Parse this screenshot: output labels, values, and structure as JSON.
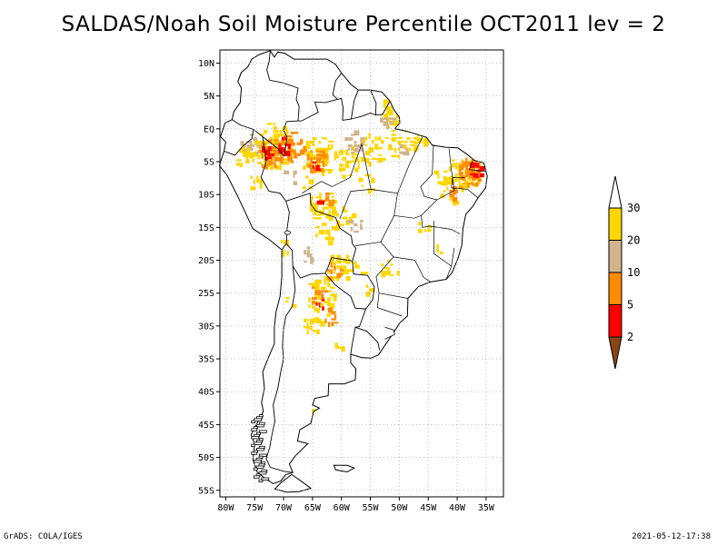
{
  "title": "SALDAS/Noah Soil Moisture Percentile OCT2011 lev = 2",
  "footer": {
    "left": "GrADS: COLA/IGES",
    "right": "2021-05-12-17:38"
  },
  "map": {
    "lon_range": [
      -81,
      -32
    ],
    "lat_range": [
      -56,
      12
    ],
    "lon_ticks": [
      {
        "v": -80,
        "label": "80W"
      },
      {
        "v": -75,
        "label": "75W"
      },
      {
        "v": -70,
        "label": "70W"
      },
      {
        "v": -65,
        "label": "65W"
      },
      {
        "v": -60,
        "label": "60W"
      },
      {
        "v": -55,
        "label": "55W"
      },
      {
        "v": -50,
        "label": "50W"
      },
      {
        "v": -45,
        "label": "45W"
      },
      {
        "v": -40,
        "label": "40W"
      },
      {
        "v": -35,
        "label": "35W"
      }
    ],
    "lat_ticks": [
      {
        "v": 10,
        "label": "10N"
      },
      {
        "v": 5,
        "label": "5N"
      },
      {
        "v": 0,
        "label": "EQ"
      },
      {
        "v": -5,
        "label": "5S"
      },
      {
        "v": -10,
        "label": "10S"
      },
      {
        "v": -15,
        "label": "15S"
      },
      {
        "v": -20,
        "label": "20S"
      },
      {
        "v": -25,
        "label": "25S"
      },
      {
        "v": -30,
        "label": "30S"
      },
      {
        "v": -35,
        "label": "35S"
      },
      {
        "v": -40,
        "label": "40S"
      },
      {
        "v": -45,
        "label": "45S"
      },
      {
        "v": -50,
        "label": "50S"
      },
      {
        "v": -55,
        "label": "55S"
      }
    ],
    "grid": true
  },
  "colorbar": {
    "levels": [
      "2",
      "5",
      "10",
      "20",
      "30"
    ],
    "colors": {
      "below_2": "#8b4513",
      "2_5": "#ff0000",
      "5_10": "#ff8c00",
      "10_20": "#d2b48c",
      "20_30": "#ffd700",
      "above_30": "#ffffff"
    }
  }
}
